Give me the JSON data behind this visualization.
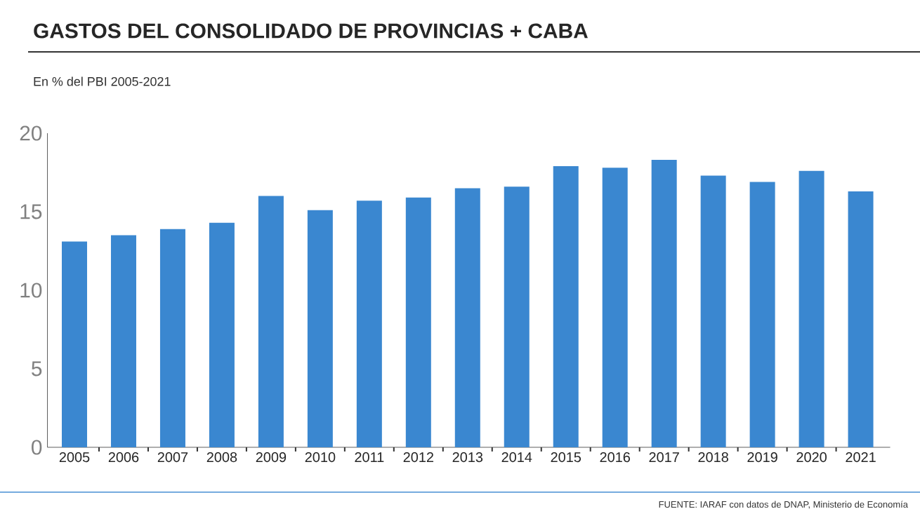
{
  "chart_data": {
    "type": "bar",
    "title": "GASTOS DEL CONSOLIDADO DE PROVINCIAS + CABA",
    "subtitle": "En % del PBI 2005-2021",
    "categories": [
      "2005",
      "2006",
      "2007",
      "2008",
      "2009",
      "2010",
      "2011",
      "2012",
      "2013",
      "2014",
      "2015",
      "2016",
      "2017",
      "2018",
      "2019",
      "2020",
      "2021"
    ],
    "values": [
      13.1,
      13.5,
      13.9,
      14.3,
      16.0,
      15.1,
      15.7,
      15.9,
      16.5,
      16.6,
      17.9,
      17.8,
      18.3,
      17.3,
      16.9,
      17.6,
      16.3
    ],
    "color": "#3a87d0",
    "ylim": [
      0,
      20
    ],
    "yticks": [
      0,
      5,
      10,
      15,
      20
    ],
    "grid": false,
    "annotations": [
      "FUENTE: IARAF con datos de DNAP, Ministerio de Economía"
    ]
  }
}
